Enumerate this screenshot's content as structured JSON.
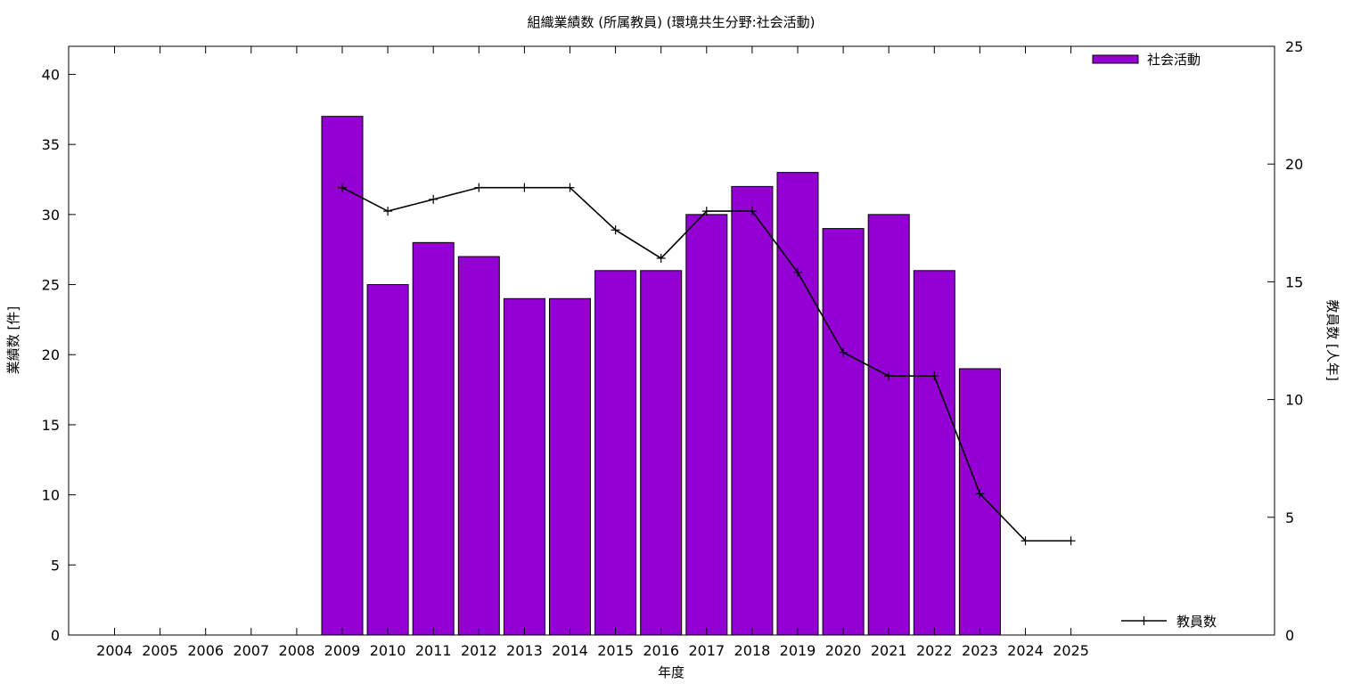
{
  "chart_data": {
    "type": "bar",
    "title": "組織業績数 (所属教員) (環境共生分野:社会活動)",
    "xlabel": "年度",
    "ylabel": "業績数 [件]",
    "y2label": "教員数 [人年]",
    "categories": [
      "2004",
      "2005",
      "2006",
      "2007",
      "2008",
      "2009",
      "2010",
      "2011",
      "2012",
      "2013",
      "2014",
      "2015",
      "2016",
      "2017",
      "2018",
      "2019",
      "2020",
      "2021",
      "2022",
      "2023",
      "2024",
      "2025"
    ],
    "ylim": [
      0,
      42
    ],
    "yticks": [
      0,
      5,
      10,
      15,
      20,
      25,
      30,
      35,
      40
    ],
    "y2lim": [
      0,
      25
    ],
    "y2ticks": [
      0,
      5,
      10,
      15,
      20,
      25
    ],
    "series": [
      {
        "name": "社会活動",
        "type": "bar",
        "axis": "left",
        "color": "#9400d3",
        "values": [
          null,
          null,
          null,
          null,
          null,
          37,
          25,
          28,
          27,
          24,
          24,
          26,
          26,
          30,
          32,
          33,
          29,
          30,
          26,
          19,
          null,
          null
        ]
      },
      {
        "name": "教員数",
        "type": "line",
        "axis": "right",
        "color": "#000000",
        "values": [
          null,
          null,
          null,
          null,
          null,
          19,
          18,
          18.5,
          19,
          19,
          19,
          17.2,
          16,
          18,
          18,
          15.4,
          12,
          11,
          11,
          6,
          4,
          4
        ]
      }
    ],
    "legend_position": [
      "top-right",
      "bottom-right"
    ],
    "grid": false
  }
}
